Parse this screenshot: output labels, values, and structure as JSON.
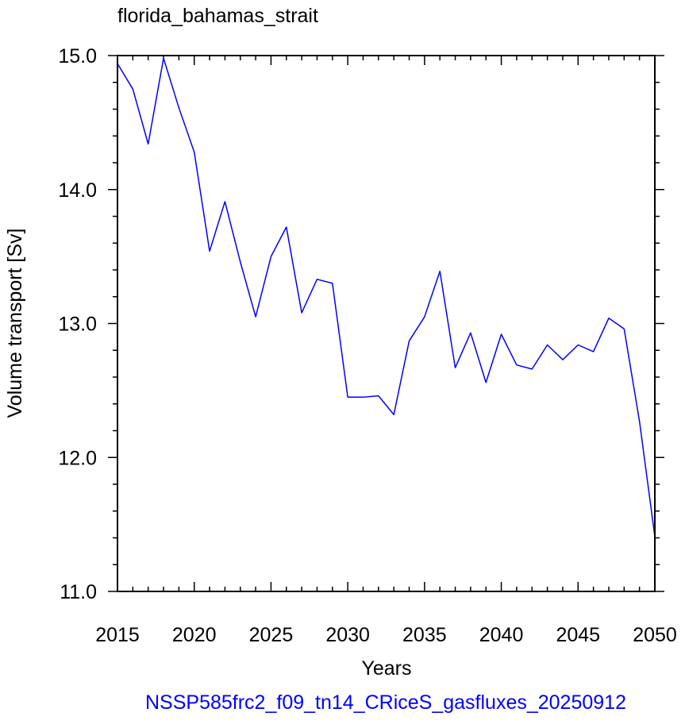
{
  "chart_data": {
    "type": "line",
    "title": "florida_bahamas_strait",
    "xlabel": "Years",
    "ylabel": "Volume transport [Sv]",
    "footer": "NSSP585frc2_f09_tn14_CRiceS_gasfluxes_20250912",
    "xlim": [
      2015,
      2050
    ],
    "ylim": [
      11.0,
      15.0
    ],
    "x_ticks": [
      2015,
      2020,
      2025,
      2030,
      2035,
      2040,
      2045,
      2050
    ],
    "x_tick_labels": [
      "2015",
      "2020",
      "2025",
      "2030",
      "2035",
      "2040",
      "2045",
      "2050"
    ],
    "y_ticks": [
      11.0,
      12.0,
      13.0,
      14.0,
      15.0
    ],
    "y_tick_labels": [
      "11.0",
      "12.0",
      "13.0",
      "14.0",
      "15.0"
    ],
    "x_minor_step": 1,
    "y_minor_step": 0.2,
    "grid": false,
    "line_color": "#0000ff",
    "series": [
      {
        "x": [
          2015,
          2016,
          2017,
          2018,
          2019,
          2020,
          2021,
          2022,
          2023,
          2024,
          2025,
          2026,
          2027,
          2028,
          2029,
          2030,
          2031,
          2032,
          2033,
          2034,
          2035,
          2036,
          2037,
          2038,
          2039,
          2040,
          2041,
          2042,
          2043,
          2044,
          2045,
          2046,
          2047,
          2048,
          2049,
          2050
        ],
        "values": [
          14.94,
          14.75,
          14.34,
          14.98,
          14.61,
          14.28,
          13.54,
          13.91,
          13.46,
          13.05,
          13.5,
          13.72,
          13.08,
          13.33,
          13.3,
          12.45,
          12.45,
          12.46,
          12.32,
          12.87,
          13.05,
          13.39,
          12.67,
          12.93,
          12.56,
          12.92,
          12.69,
          12.66,
          12.84,
          12.73,
          12.84,
          12.79,
          13.04,
          12.96,
          12.27,
          11.41
        ]
      }
    ]
  }
}
